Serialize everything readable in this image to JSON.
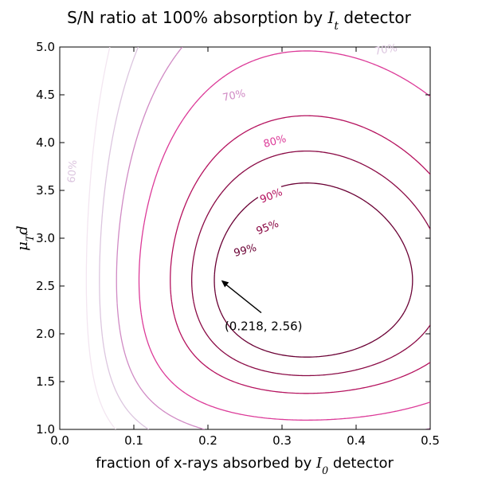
{
  "chart_data": {
    "type": "contour",
    "title": {
      "prefix": "S/N ratio at 100% absorption by ",
      "math_main": "I",
      "math_sub": "t",
      "suffix": " detector"
    },
    "xlabel": {
      "prefix": "fraction of x-rays absorbed by ",
      "math_main": "I",
      "math_sub": "0",
      "suffix": " detector"
    },
    "ylabel": {
      "math_main": "μ",
      "math_sub": "T",
      "math_tail": "d"
    },
    "xlim": [
      0.0,
      0.5
    ],
    "ylim": [
      1.0,
      5.0
    ],
    "xticks": [
      0.0,
      0.1,
      0.2,
      0.3,
      0.4,
      0.5
    ],
    "xtick_labels": [
      "0.0",
      "0.1",
      "0.2",
      "0.3",
      "0.4",
      "0.5"
    ],
    "yticks": [
      1.0,
      1.5,
      2.0,
      2.5,
      3.0,
      3.5,
      4.0,
      4.5,
      5.0
    ],
    "ytick_labels": [
      "1.0",
      "1.5",
      "2.0",
      "2.5",
      "3.0",
      "3.5",
      "4.0",
      "4.5",
      "5.0"
    ],
    "grid": false,
    "maximum": {
      "x": 0.218,
      "y": 2.56
    },
    "annotation": {
      "text": "(0.218, 2.56)",
      "text_x": 0.275,
      "text_y": 2.08
    },
    "levels": [
      {
        "percent": 50,
        "label": "",
        "color": "#f3e6f1"
      },
      {
        "percent": 60,
        "label": "60%",
        "color": "#dcc6df"
      },
      {
        "percent": 70,
        "label": "70%",
        "color": "#d08ac4"
      },
      {
        "percent": 80,
        "label": "80%",
        "color": "#dc3a98"
      },
      {
        "percent": 90,
        "label": "90%",
        "color": "#b5125e"
      },
      {
        "percent": 95,
        "label": "95%",
        "color": "#8a0a45"
      },
      {
        "percent": 99,
        "label": "99%",
        "color": "#6a0034"
      }
    ],
    "top_edge_label": {
      "text": "70%",
      "color": "#dcc6df"
    }
  }
}
